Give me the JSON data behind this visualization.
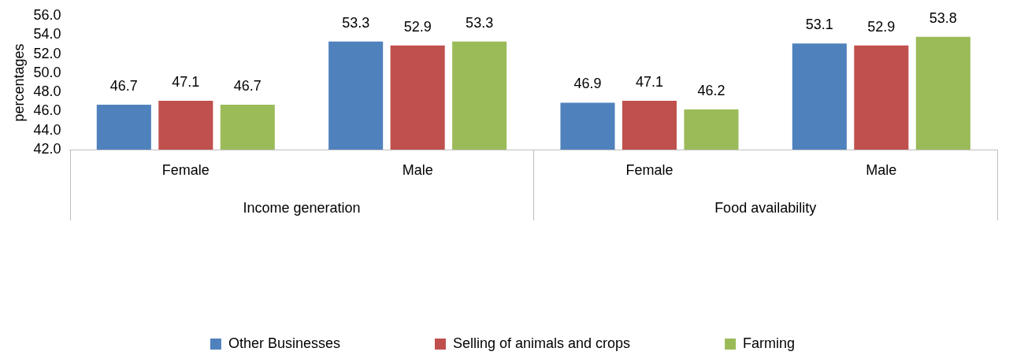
{
  "chart_data": {
    "type": "bar",
    "ylabel": "percentages",
    "categories": [
      "Female",
      "Male",
      "Female",
      "Male"
    ],
    "series": [
      {
        "name": "Other Businesses",
        "color": "#4f81bd",
        "values": [
          46.7,
          53.3,
          46.9,
          53.1
        ]
      },
      {
        "name": "Selling of animals and crops",
        "color": "#c0504d",
        "values": [
          47.1,
          52.9,
          47.1,
          52.9
        ]
      },
      {
        "name": "Farming",
        "color": "#9bbb59",
        "values": [
          46.7,
          53.3,
          46.2,
          53.8
        ]
      }
    ],
    "ylim": [
      42,
      56
    ],
    "yticks": [
      {
        "value": 42,
        "label": "42.0"
      },
      {
        "value": 44,
        "label": "44.0"
      },
      {
        "value": 46,
        "label": "46.0"
      },
      {
        "value": 48,
        "label": "48.0"
      },
      {
        "value": 50,
        "label": "50.0"
      },
      {
        "value": 52,
        "label": "52.0"
      },
      {
        "value": 54,
        "label": "54.0"
      },
      {
        "value": 56,
        "label": "56.0"
      }
    ],
    "annotations": [
      "Income generation",
      "Food availability"
    ],
    "data_labels": true,
    "grid": false,
    "legend": "bottom"
  }
}
